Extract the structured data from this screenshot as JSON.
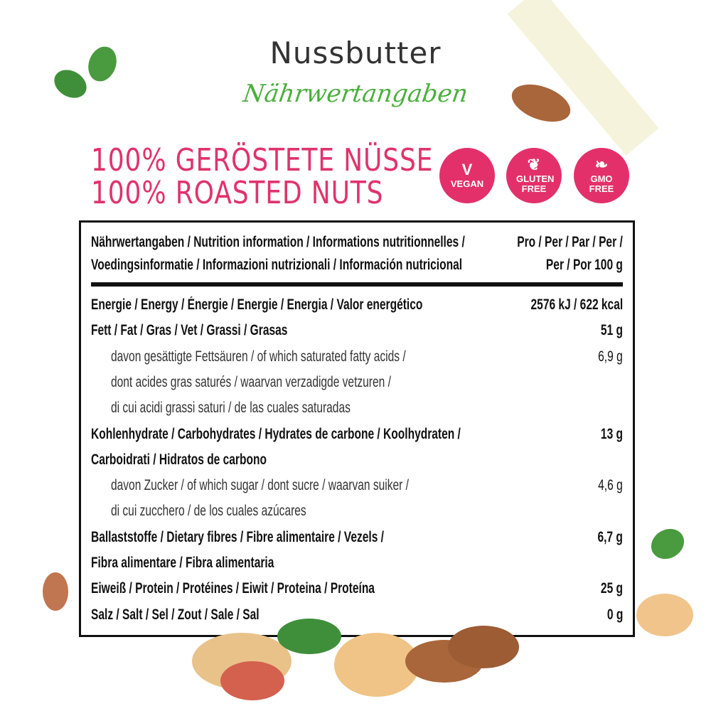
{
  "header": {
    "title": "Nussbutter",
    "subtitle": "Nährwertangaben"
  },
  "claims": [
    "100% GERÖSTETE NÜSSE",
    "100% ROASTED NUTS"
  ],
  "badges": [
    {
      "icon": "vegan-v-leaf-icon",
      "label": "VEGAN"
    },
    {
      "icon": "wheat-icon",
      "label": "GLUTEN FREE"
    },
    {
      "icon": "leaves-icon",
      "label": "GMO FREE"
    }
  ],
  "colors": {
    "accent": "#e3306b",
    "script": "#4caf3e"
  },
  "table": {
    "header": {
      "label_line1": "Nährwertangaben / Nutrition information / Informations nutritionnelles /",
      "label_line2": "Voedingsinformatie / Informazioni nutrizionali / Información nutricional",
      "per_line1": "Pro / Per / Par / Per /",
      "per_line2": "Per / Por 100 g"
    },
    "rows": [
      {
        "label": "Energie / Energy / Énergie / Energie / Energia / Valor energético",
        "value": "2576 kJ / 622 kcal",
        "bold": true
      },
      {
        "label": "Fett / Fat / Gras / Vet / Grassi / Grasas",
        "value": "51 g",
        "bold": true
      },
      {
        "label": "davon gesättigte Fettsäuren / of which saturated fatty acids /",
        "value": "6,9 g",
        "indent": true
      },
      {
        "label": "dont acides gras saturés / waarvan verzadigde vetzuren /",
        "value": "",
        "indent": true
      },
      {
        "label": "di cui acidi grassi saturi / de las cuales saturadas",
        "value": "",
        "indent": true
      },
      {
        "label": "Kohlenhydrate / Carbohydrates / Hydrates de carbone / Koolhydraten /",
        "value": "13 g",
        "bold": true
      },
      {
        "label": "Carboidrati / Hidratos de carbono",
        "value": "",
        "bold": true
      },
      {
        "label": "davon Zucker / of which sugar / dont sucre / waarvan suiker /",
        "value": "4,6 g",
        "indent": true
      },
      {
        "label": "di cui zucchero / de los cuales azúcares",
        "value": "",
        "indent": true
      },
      {
        "label": "Ballaststoffe / Dietary fibres / Fibre alimentaire / Vezels /",
        "value": "6,7 g",
        "bold": true
      },
      {
        "label": "Fibra alimentare / Fibra alimentaria",
        "value": "",
        "bold": true
      },
      {
        "label": "Eiweiß / Protein / Protéines / Eiwit / Proteina / Proteína",
        "value": "25 g",
        "bold": true
      },
      {
        "label": "Salz / Salt / Sel / Zout / Sale / Sal",
        "value": "0 g",
        "bold": true
      }
    ]
  }
}
